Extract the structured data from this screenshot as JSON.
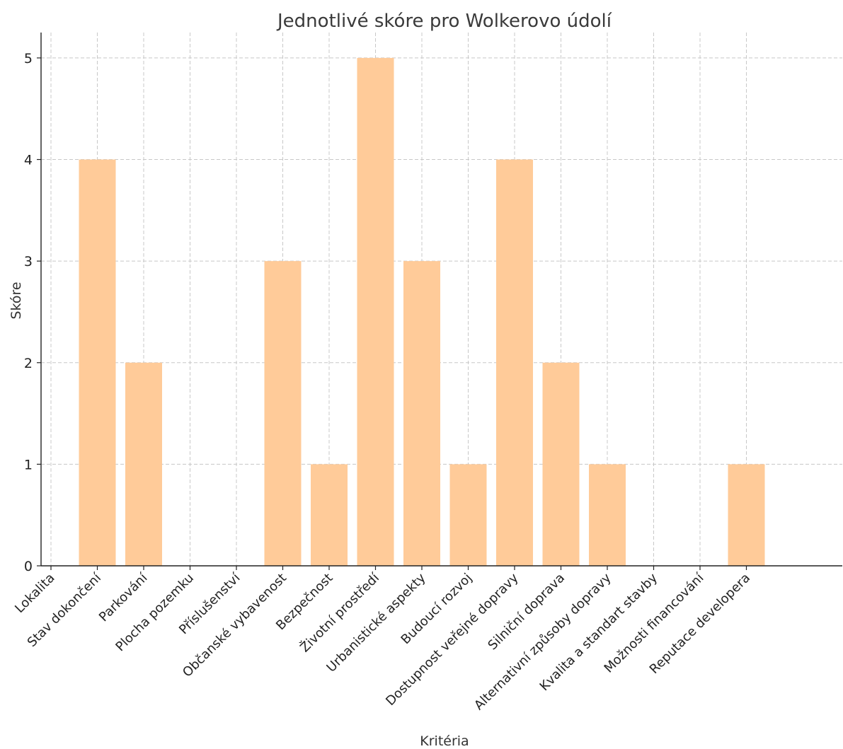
{
  "chart_data": {
    "type": "bar",
    "title": "Jednotlivé skóre pro Wolkerovo údolí",
    "xlabel": "Kritéria",
    "ylabel": "Skóre",
    "ylim": [
      0,
      5.25
    ],
    "yticks": [
      0,
      1,
      2,
      3,
      4,
      5
    ],
    "grid": true,
    "bar_color": "#ffcb99",
    "categories": [
      "Lokalita",
      "Stav dokončení",
      "Parkování",
      "Plocha pozemku",
      "Příslušenství",
      "Občanské vybavenost",
      "Bezpečnost",
      "Životní prostředí",
      "Urbanistické aspekty",
      "Budoucí rozvoj",
      "Dostupnost veřejné dopravy",
      "Silniční doprava",
      "Alternativní způsoby dopravy",
      "Kvalita a standart stavby",
      "Možnosti financování",
      "Reputace developera"
    ],
    "values": [
      0,
      4,
      2,
      0,
      0,
      3,
      1,
      5,
      3,
      1,
      4,
      2,
      1,
      0,
      0,
      1
    ]
  }
}
